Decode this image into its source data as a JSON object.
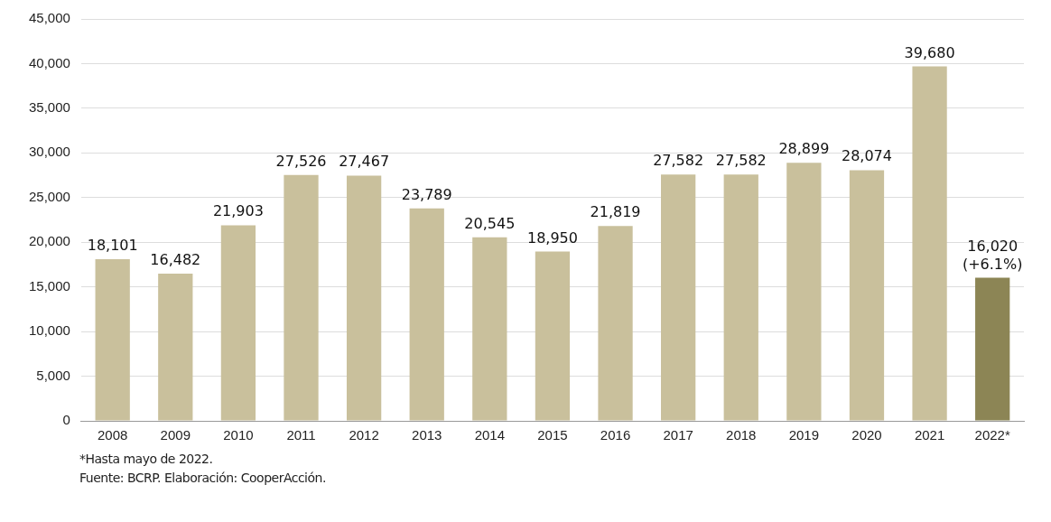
{
  "chart_data": {
    "type": "bar",
    "categories": [
      "2008",
      "2009",
      "2010",
      "2011",
      "2012",
      "2013",
      "2014",
      "2015",
      "2016",
      "2017",
      "2018",
      "2019",
      "2020",
      "2021",
      "2022*"
    ],
    "values": [
      18101,
      16482,
      21903,
      27526,
      27467,
      23789,
      20545,
      18950,
      21819,
      27582,
      27582,
      28899,
      28074,
      39680,
      16020
    ],
    "value_labels": [
      "18,101",
      "16,482",
      "21,903",
      "27,526",
      "27,467",
      "23,789",
      "20,545",
      "18,950",
      "21,819",
      "27,582",
      "27,582",
      "28,899",
      "28,074",
      "39,680",
      "16,020\n(+6.1%)"
    ],
    "colors": [
      "#c9c09c",
      "#c9c09c",
      "#c9c09c",
      "#c9c09c",
      "#c9c09c",
      "#c9c09c",
      "#c9c09c",
      "#c9c09c",
      "#c9c09c",
      "#c9c09c",
      "#c9c09c",
      "#c9c09c",
      "#c9c09c",
      "#c9c09c",
      "#8c8555"
    ],
    "ylim": [
      0,
      45000
    ],
    "yticks": [
      {
        "value": 0,
        "label": "0"
      },
      {
        "value": 5000,
        "label": "5,000"
      },
      {
        "value": 10000,
        "label": "10,000"
      },
      {
        "value": 15000,
        "label": "15,000"
      },
      {
        "value": 20000,
        "label": "20,000"
      },
      {
        "value": 25000,
        "label": "25,000"
      },
      {
        "value": 30000,
        "label": "30,000"
      },
      {
        "value": 35000,
        "label": "35,000"
      },
      {
        "value": 40000,
        "label": "40,000"
      },
      {
        "value": 45000,
        "label": "45,000"
      }
    ],
    "grid": "y",
    "legend": false,
    "annotations": [
      "*Hasta mayo de 2022.",
      "Fuente: BCRP. Elaboración: CooperAcción."
    ]
  }
}
